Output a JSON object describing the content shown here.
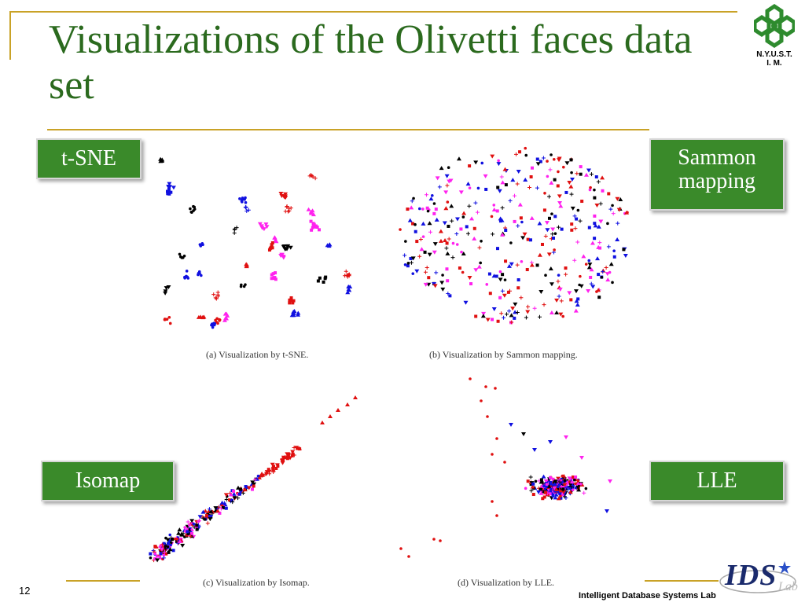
{
  "slide": {
    "title": "Visualizations of the Olivetti faces data set",
    "page_number": "12",
    "lab_name": "Intelligent Database Systems Lab"
  },
  "logos": {
    "nyust": {
      "text": "N.Y.U.S.T.\nI. M.",
      "icon": "snowflake-icon",
      "color": "#2e8b2e"
    },
    "ids": {
      "text": "IDS",
      "sub": "Lab",
      "icon": "ids-lab-logo"
    }
  },
  "labels": {
    "tsne": "t-SNE",
    "sammon": "Sammon\nmapping",
    "isomap": "Isomap",
    "lle": "LLE"
  },
  "colors": {
    "title_green": "#2b6a1e",
    "label_green": "#3a8a2a",
    "rule_gold": "#c9a227"
  },
  "chart_data": [
    {
      "type": "scatter",
      "caption": "(a) Visualization by t-SNE.",
      "series_colors": [
        "#000000",
        "#ff22ee",
        "#e01010",
        "#1010e0"
      ]
    },
    {
      "type": "scatter",
      "caption": "(b) Visualization by Sammon mapping.",
      "series_colors": [
        "#000000",
        "#ff22ee",
        "#e01010",
        "#1010e0"
      ]
    },
    {
      "type": "scatter",
      "caption": "(c) Visualization by Isomap.",
      "series_colors": [
        "#000000",
        "#ff22ee",
        "#e01010",
        "#1010e0"
      ]
    },
    {
      "type": "scatter",
      "caption": "(d) Visualization by LLE.",
      "series_colors": [
        "#000000",
        "#ff22ee",
        "#e01010",
        "#1010e0"
      ]
    }
  ]
}
